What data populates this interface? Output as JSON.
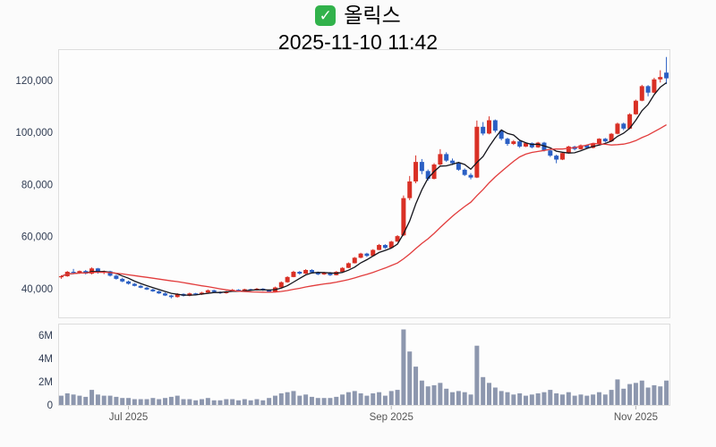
{
  "header": {
    "check_icon": "white-check-on-green-square",
    "check_color": "#31b24b",
    "check_glyph": "✓"
  },
  "chart_data": {
    "type": "candlestick",
    "title": "올릭스",
    "subtitle": "2025-11-10 11:42",
    "legend": "none",
    "grid": "off",
    "y_axis": {
      "ticks": [
        40000,
        60000,
        80000,
        100000,
        120000
      ],
      "range": [
        29000,
        132000
      ],
      "side": "left"
    },
    "volume_axis": {
      "ticks": [
        {
          "value": 0,
          "label": "0"
        },
        {
          "value": 2,
          "label": "2M"
        },
        {
          "value": 4,
          "label": "4M"
        },
        {
          "value": 6,
          "label": "6M"
        }
      ],
      "max": 7,
      "unit": "millions of shares"
    },
    "x_ticks": [
      {
        "label": "Jul 2025",
        "month": "2025-07"
      },
      {
        "label": "Sep 2025",
        "month": "2025-09"
      },
      {
        "label": "Nov 2025",
        "month": "2025-11"
      }
    ],
    "moving_averages": [
      {
        "name": "short",
        "period": 5,
        "color": "#15151c"
      },
      {
        "name": "long",
        "period": 20,
        "color": "#e23c3c"
      }
    ],
    "colors": {
      "up": "#d93025",
      "down": "#2a5fc4",
      "volume": "#8d97ae",
      "panel_bg": "#fdfdfd",
      "panel_border": "#dddddd",
      "axis_text": "#2f3b52",
      "month_text": "#555555"
    },
    "candle_fields": [
      "date",
      "open",
      "high",
      "low",
      "close",
      "volume_millions"
    ],
    "candles": [
      [
        "2025-06-16",
        44500,
        45200,
        43800,
        44800,
        0.8
      ],
      [
        "2025-06-17",
        44800,
        46800,
        44600,
        46500,
        1.0
      ],
      [
        "2025-06-18",
        46500,
        47600,
        45900,
        46200,
        0.9
      ],
      [
        "2025-06-19",
        46200,
        47000,
        45700,
        46800,
        0.8
      ],
      [
        "2025-06-20",
        46800,
        47200,
        45500,
        45800,
        0.7
      ],
      [
        "2025-06-23",
        45800,
        48200,
        45500,
        47800,
        1.3
      ],
      [
        "2025-06-24",
        47800,
        48000,
        45800,
        46200,
        0.9
      ],
      [
        "2025-06-25",
        46200,
        47000,
        45600,
        46700,
        0.8
      ],
      [
        "2025-06-26",
        46700,
        46900,
        44700,
        45000,
        0.8
      ],
      [
        "2025-06-27",
        45000,
        45400,
        43500,
        43800,
        0.7
      ],
      [
        "2025-06-30",
        43800,
        44200,
        42500,
        42800,
        0.6
      ],
      [
        "2025-07-01",
        42800,
        43100,
        41600,
        41900,
        0.6
      ],
      [
        "2025-07-02",
        41900,
        42200,
        40900,
        41100,
        0.5
      ],
      [
        "2025-07-03",
        41100,
        41500,
        40200,
        40400,
        0.5
      ],
      [
        "2025-07-04",
        40400,
        40700,
        39500,
        39700,
        0.5
      ],
      [
        "2025-07-07",
        39700,
        40000,
        38800,
        39000,
        0.6
      ],
      [
        "2025-07-08",
        39000,
        39300,
        38000,
        38200,
        0.5
      ],
      [
        "2025-07-09",
        38200,
        38600,
        37200,
        37400,
        0.6
      ],
      [
        "2025-07-10",
        37400,
        37700,
        36300,
        36800,
        0.7
      ],
      [
        "2025-07-11",
        36800,
        38300,
        36600,
        38000,
        0.8
      ],
      [
        "2025-07-14",
        38000,
        38200,
        37000,
        37300,
        0.5
      ],
      [
        "2025-07-15",
        37300,
        38500,
        37100,
        38200,
        0.5
      ],
      [
        "2025-07-16",
        38200,
        38400,
        37500,
        37800,
        0.4
      ],
      [
        "2025-07-17",
        37800,
        38800,
        37600,
        38500,
        0.5
      ],
      [
        "2025-07-18",
        38500,
        39700,
        38400,
        39400,
        0.6
      ],
      [
        "2025-07-21",
        39400,
        39600,
        38600,
        38800,
        0.4
      ],
      [
        "2025-07-22",
        38800,
        39000,
        38000,
        38300,
        0.4
      ],
      [
        "2025-07-23",
        38300,
        39200,
        38100,
        39000,
        0.5
      ],
      [
        "2025-07-24",
        39000,
        39900,
        38900,
        39600,
        0.5
      ],
      [
        "2025-07-25",
        39600,
        39800,
        39000,
        39200,
        0.4
      ],
      [
        "2025-07-28",
        39200,
        40000,
        39100,
        39800,
        0.5
      ],
      [
        "2025-07-29",
        39800,
        40000,
        39100,
        39400,
        0.4
      ],
      [
        "2025-07-30",
        39400,
        40300,
        39300,
        40000,
        0.5
      ],
      [
        "2025-07-31",
        40000,
        40200,
        39200,
        39500,
        0.4
      ],
      [
        "2025-08-01",
        39500,
        39700,
        38500,
        38800,
        0.6
      ],
      [
        "2025-08-04",
        38800,
        40800,
        38700,
        40500,
        0.8
      ],
      [
        "2025-08-05",
        40500,
        42800,
        40400,
        42500,
        1.0
      ],
      [
        "2025-08-06",
        42500,
        44800,
        42300,
        44500,
        1.1
      ],
      [
        "2025-08-07",
        44500,
        46900,
        44400,
        46500,
        1.2
      ],
      [
        "2025-08-08",
        46500,
        46800,
        45400,
        45800,
        0.8
      ],
      [
        "2025-08-11",
        45800,
        47500,
        45600,
        47200,
        0.9
      ],
      [
        "2025-08-12",
        47200,
        47500,
        46000,
        46300,
        0.7
      ],
      [
        "2025-08-13",
        46300,
        46600,
        45200,
        45500,
        0.6
      ],
      [
        "2025-08-14",
        45500,
        46500,
        45300,
        46200,
        0.6
      ],
      [
        "2025-08-18",
        46200,
        46400,
        44900,
        45200,
        0.6
      ],
      [
        "2025-08-19",
        45200,
        46800,
        45100,
        46500,
        0.7
      ],
      [
        "2025-08-20",
        46500,
        48300,
        46400,
        48000,
        0.9
      ],
      [
        "2025-08-21",
        48000,
        50100,
        47900,
        49800,
        1.1
      ],
      [
        "2025-08-22",
        49800,
        52200,
        49700,
        51900,
        1.2
      ],
      [
        "2025-08-25",
        51900,
        53800,
        51700,
        53500,
        1.0
      ],
      [
        "2025-08-26",
        53500,
        53800,
        52200,
        52600,
        0.8
      ],
      [
        "2025-08-27",
        52600,
        55200,
        52500,
        54900,
        1.0
      ],
      [
        "2025-08-28",
        54900,
        57200,
        54800,
        56800,
        1.1
      ],
      [
        "2025-08-29",
        56800,
        57100,
        55300,
        55700,
        0.8
      ],
      [
        "2025-09-01",
        55700,
        58400,
        55600,
        58100,
        1.2
      ],
      [
        "2025-09-02",
        58100,
        60600,
        58000,
        60200,
        1.3
      ],
      [
        "2025-09-03",
        60500,
        75800,
        60200,
        74800,
        6.5
      ],
      [
        "2025-09-04",
        74800,
        83300,
        74000,
        81200,
        4.6
      ],
      [
        "2025-09-05",
        81200,
        91200,
        80500,
        88700,
        3.3
      ],
      [
        "2025-09-08",
        88700,
        89800,
        84000,
        85200,
        2.1
      ],
      [
        "2025-09-09",
        85200,
        85800,
        81500,
        82200,
        1.6
      ],
      [
        "2025-09-10",
        82200,
        88200,
        82000,
        87700,
        1.7
      ],
      [
        "2025-09-11",
        87700,
        93600,
        87400,
        91700,
        1.9
      ],
      [
        "2025-09-12",
        91700,
        92400,
        88700,
        89200,
        1.4
      ],
      [
        "2025-09-15",
        89200,
        90000,
        87500,
        88200,
        1.1
      ],
      [
        "2025-09-16",
        88200,
        88600,
        85300,
        85700,
        1.2
      ],
      [
        "2025-09-17",
        85700,
        86200,
        83300,
        83700,
        1.1
      ],
      [
        "2025-09-18",
        83700,
        84400,
        82000,
        82700,
        0.9
      ],
      [
        "2025-09-19",
        82700,
        104600,
        82500,
        102200,
        5.1
      ],
      [
        "2025-09-22",
        102200,
        104000,
        98900,
        99600,
        2.4
      ],
      [
        "2025-09-23",
        99600,
        106200,
        99300,
        104700,
        1.9
      ],
      [
        "2025-09-24",
        104700,
        105000,
        100000,
        100700,
        1.5
      ],
      [
        "2025-09-25",
        100700,
        101100,
        97000,
        97600,
        1.2
      ],
      [
        "2025-09-26",
        97600,
        98000,
        94900,
        95600,
        1.1
      ],
      [
        "2025-09-29",
        95600,
        97100,
        95200,
        96600,
        0.9
      ],
      [
        "2025-09-30",
        96600,
        96900,
        94100,
        94600,
        1.0
      ],
      [
        "2025-10-01",
        94600,
        96300,
        94400,
        95900,
        0.8
      ],
      [
        "2025-10-02",
        95900,
        96200,
        93900,
        94300,
        0.9
      ],
      [
        "2025-10-10",
        94300,
        96400,
        94100,
        96100,
        1.0
      ],
      [
        "2025-10-13",
        96100,
        96400,
        92700,
        93100,
        1.1
      ],
      [
        "2025-10-14",
        93100,
        93600,
        90600,
        91100,
        1.3
      ],
      [
        "2025-10-15",
        91100,
        91500,
        88200,
        89600,
        1.0
      ],
      [
        "2025-10-16",
        89600,
        92500,
        89400,
        92100,
        0.9
      ],
      [
        "2025-10-17",
        92100,
        94900,
        91900,
        94600,
        1.1
      ],
      [
        "2025-10-20",
        94600,
        94900,
        93100,
        93600,
        0.8
      ],
      [
        "2025-10-21",
        93600,
        95400,
        93400,
        95100,
        0.9
      ],
      [
        "2025-10-22",
        95100,
        95400,
        93700,
        94100,
        0.8
      ],
      [
        "2025-10-23",
        94100,
        95900,
        93900,
        95600,
        0.9
      ],
      [
        "2025-10-24",
        95600,
        97800,
        95400,
        97600,
        1.1
      ],
      [
        "2025-10-27",
        97600,
        97900,
        96200,
        96600,
        0.9
      ],
      [
        "2025-10-28",
        96600,
        99800,
        96400,
        99500,
        1.3
      ],
      [
        "2025-10-29",
        99500,
        103800,
        99300,
        103400,
        2.2
      ],
      [
        "2025-10-30",
        103400,
        103800,
        100900,
        101500,
        1.4
      ],
      [
        "2025-10-31",
        101500,
        107400,
        101300,
        107000,
        1.8
      ],
      [
        "2025-11-03",
        107000,
        112600,
        106800,
        112200,
        1.9
      ],
      [
        "2025-11-04",
        112200,
        118300,
        112000,
        117800,
        2.1
      ],
      [
        "2025-11-05",
        117800,
        118200,
        113900,
        115300,
        1.5
      ],
      [
        "2025-11-06",
        115300,
        121000,
        115100,
        120400,
        1.7
      ],
      [
        "2025-11-07",
        120400,
        123900,
        119200,
        121300,
        1.6
      ],
      [
        "2025-11-10",
        123000,
        129000,
        118600,
        120800,
        2.1
      ]
    ]
  }
}
